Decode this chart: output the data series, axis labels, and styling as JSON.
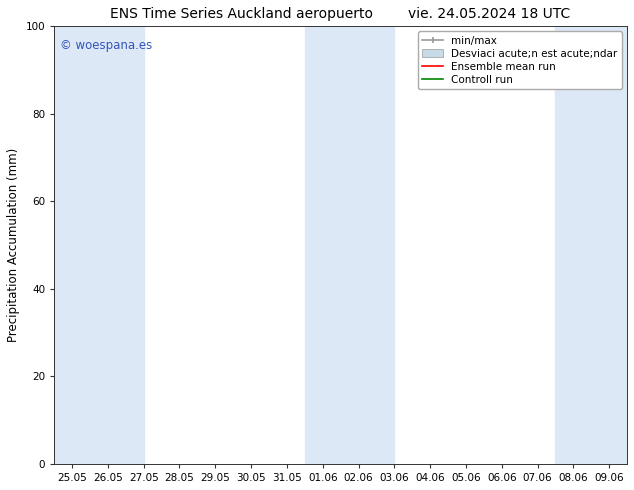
{
  "title_left": "ENS Time Series Auckland aeropuerto",
  "title_right": "vie. 24.05.2024 18 UTC",
  "ylabel": "Precipitation Accumulation (mm)",
  "ylim": [
    0,
    100
  ],
  "yticks": [
    0,
    20,
    40,
    60,
    80,
    100
  ],
  "x_tick_labels": [
    "25.05",
    "26.05",
    "27.05",
    "28.05",
    "29.05",
    "30.05",
    "31.05",
    "01.06",
    "02.06",
    "03.06",
    "04.06",
    "05.06",
    "06.06",
    "07.06",
    "08.06",
    "09.06"
  ],
  "band_color": "#dce8f5",
  "background_color": "#ffffff",
  "plot_bg_color": "#ffffff",
  "watermark_text": "© woespana.es",
  "watermark_color": "#3355bb",
  "legend_label_minmax": "min/max",
  "legend_label_std": "Desviaci acute;n est acute;ndar",
  "legend_label_ensemble": "Ensemble mean run",
  "legend_label_control": "Controll run",
  "minmax_color": "#999999",
  "std_color": "#c8dce8",
  "ensemble_color": "#ff0000",
  "control_color": "#008800",
  "title_fontsize": 10,
  "tick_fontsize": 7.5,
  "ylabel_fontsize": 8.5,
  "legend_fontsize": 7.5
}
